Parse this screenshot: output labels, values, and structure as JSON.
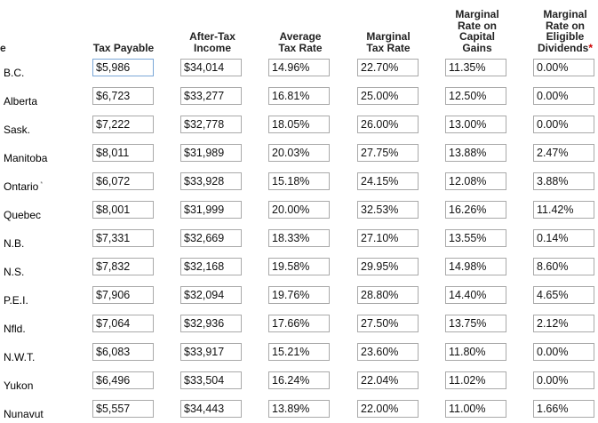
{
  "headers": {
    "province_fragment": "e",
    "tax_payable": "Tax Payable",
    "after_tax_income_line1": "After-Tax",
    "after_tax_income_line2": "Income",
    "avg_rate_line1": "Average",
    "avg_rate_line2": "Tax Rate",
    "marg_rate_line1": "Marginal",
    "marg_rate_line2": "Tax Rate",
    "cap_gains_line1": "Marginal",
    "cap_gains_line2": "Rate on",
    "cap_gains_line3": "Capital",
    "cap_gains_line4": "Gains",
    "elig_div_line1": "Marginal",
    "elig_div_line2": "Rate on",
    "elig_div_line3": "Eligible",
    "elig_div_line4": "Dividends",
    "elig_div_marker": "*"
  },
  "rows": [
    {
      "province": "B.C.",
      "note": "",
      "tax_payable": "$5,986",
      "after_tax_income": "$34,014",
      "average_rate": "14.96%",
      "marginal_rate": "22.70%",
      "capital_gains_rate": "11.35%",
      "eligible_dividends_rate": "0.00%"
    },
    {
      "province": "Alberta",
      "note": "",
      "tax_payable": "$6,723",
      "after_tax_income": "$33,277",
      "average_rate": "16.81%",
      "marginal_rate": "25.00%",
      "capital_gains_rate": "12.50%",
      "eligible_dividends_rate": "0.00%"
    },
    {
      "province": "Sask.",
      "note": "",
      "tax_payable": "$7,222",
      "after_tax_income": "$32,778",
      "average_rate": "18.05%",
      "marginal_rate": "26.00%",
      "capital_gains_rate": "13.00%",
      "eligible_dividends_rate": "0.00%"
    },
    {
      "province": "Manitoba",
      "note": "",
      "tax_payable": "$8,011",
      "after_tax_income": "$31,989",
      "average_rate": "20.03%",
      "marginal_rate": "27.75%",
      "capital_gains_rate": "13.88%",
      "eligible_dividends_rate": "2.47%"
    },
    {
      "province": "Ontario",
      "note": "*",
      "tax_payable": "$6,072",
      "after_tax_income": "$33,928",
      "average_rate": "15.18%",
      "marginal_rate": "24.15%",
      "capital_gains_rate": "12.08%",
      "eligible_dividends_rate": "3.88%"
    },
    {
      "province": "Quebec",
      "note": "",
      "tax_payable": "$8,001",
      "after_tax_income": "$31,999",
      "average_rate": "20.00%",
      "marginal_rate": "32.53%",
      "capital_gains_rate": "16.26%",
      "eligible_dividends_rate": "11.42%"
    },
    {
      "province": "N.B.",
      "note": "",
      "tax_payable": "$7,331",
      "after_tax_income": "$32,669",
      "average_rate": "18.33%",
      "marginal_rate": "27.10%",
      "capital_gains_rate": "13.55%",
      "eligible_dividends_rate": "0.14%"
    },
    {
      "province": "N.S.",
      "note": "",
      "tax_payable": "$7,832",
      "after_tax_income": "$32,168",
      "average_rate": "19.58%",
      "marginal_rate": "29.95%",
      "capital_gains_rate": "14.98%",
      "eligible_dividends_rate": "8.60%"
    },
    {
      "province": "P.E.I.",
      "note": "",
      "tax_payable": "$7,906",
      "after_tax_income": "$32,094",
      "average_rate": "19.76%",
      "marginal_rate": "28.80%",
      "capital_gains_rate": "14.40%",
      "eligible_dividends_rate": "4.65%"
    },
    {
      "province": "Nfld.",
      "note": "",
      "tax_payable": "$7,064",
      "after_tax_income": "$32,936",
      "average_rate": "17.66%",
      "marginal_rate": "27.50%",
      "capital_gains_rate": "13.75%",
      "eligible_dividends_rate": "2.12%"
    },
    {
      "province": "N.W.T.",
      "note": "",
      "tax_payable": "$6,083",
      "after_tax_income": "$33,917",
      "average_rate": "15.21%",
      "marginal_rate": "23.60%",
      "capital_gains_rate": "11.80%",
      "eligible_dividends_rate": "0.00%"
    },
    {
      "province": "Yukon",
      "note": "",
      "tax_payable": "$6,496",
      "after_tax_income": "$33,504",
      "average_rate": "16.24%",
      "marginal_rate": "22.04%",
      "capital_gains_rate": "11.02%",
      "eligible_dividends_rate": "0.00%"
    },
    {
      "province": "Nunavut",
      "note": "",
      "tax_payable": "$5,557",
      "after_tax_income": "$34,443",
      "average_rate": "13.89%",
      "marginal_rate": "22.00%",
      "capital_gains_rate": "11.00%",
      "eligible_dividends_rate": "1.66%"
    }
  ]
}
